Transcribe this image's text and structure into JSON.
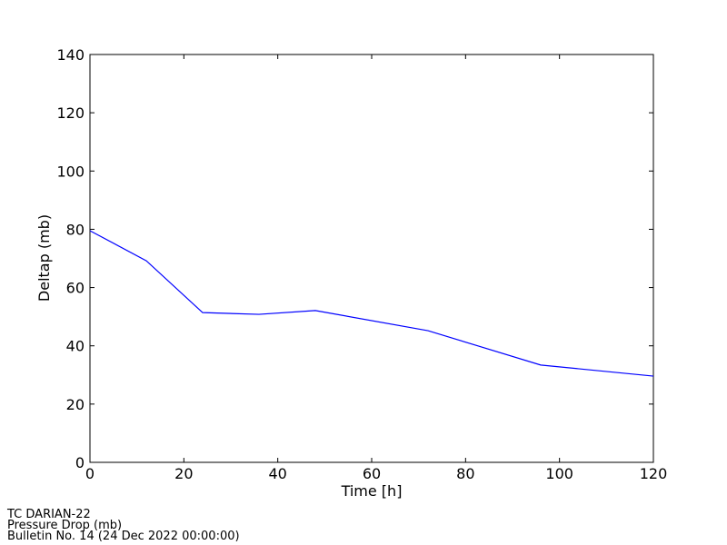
{
  "chart_data": {
    "type": "line",
    "x_label": "Time [h]",
    "y_label": "Deltap (mb)",
    "x": [
      0,
      12,
      24,
      36,
      48,
      72,
      96,
      120
    ],
    "series": [
      {
        "color": "#0000ff",
        "values": [
          79.5,
          69.2,
          51.4,
          50.8,
          52.1,
          45.2,
          33.4,
          29.6
        ]
      }
    ],
    "xlim": [
      0,
      120
    ],
    "xticks": [
      0,
      20,
      40,
      60,
      80,
      100,
      120
    ],
    "ylim": [
      0,
      140
    ],
    "yticks": [
      0,
      20,
      40,
      60,
      80,
      100,
      120,
      140
    ]
  },
  "footer": [
    "TC DARIAN-22",
    "Pressure Drop (mb)",
    "Bulletin No. 14 (24 Dec 2022  00:00:00)"
  ]
}
